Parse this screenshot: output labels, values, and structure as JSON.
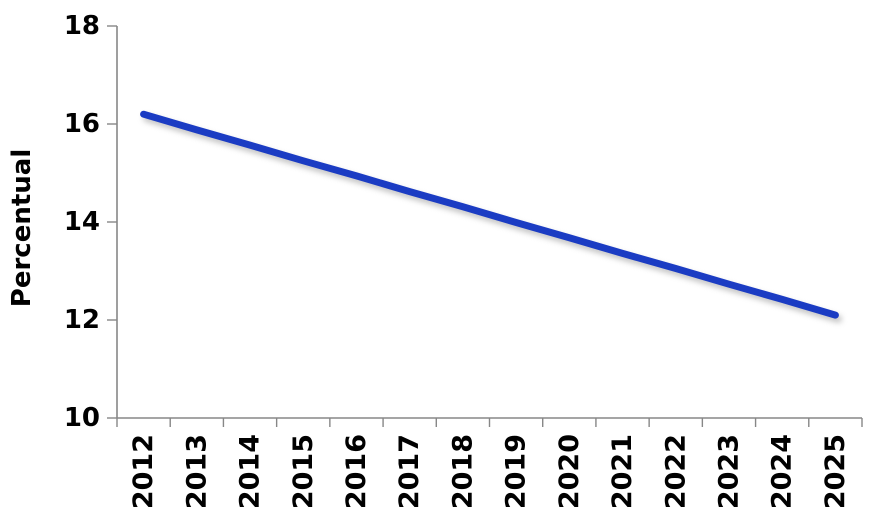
{
  "chart_data": {
    "type": "line",
    "title": "",
    "xlabel": "",
    "ylabel": "Percentual",
    "categories": [
      "2012",
      "2013",
      "2014",
      "2015",
      "2016",
      "2017",
      "2018",
      "2019",
      "2020",
      "2021",
      "2022",
      "2023",
      "2024",
      "2025"
    ],
    "series": [
      {
        "name": "Percentual",
        "color": "#1b3cc3",
        "values": [
          16.2,
          15.88,
          15.57,
          15.25,
          14.94,
          14.62,
          14.31,
          13.99,
          13.68,
          13.36,
          13.05,
          12.73,
          12.42,
          12.1
        ]
      }
    ],
    "ylim": [
      10,
      18
    ],
    "yticks": [
      10,
      12,
      14,
      16,
      18
    ],
    "grid": false,
    "legend_position": "none",
    "axis_color": "#878787",
    "text_color": "#000000",
    "background_color": "#ffffff",
    "x_labels_rotated_degrees": -90
  }
}
